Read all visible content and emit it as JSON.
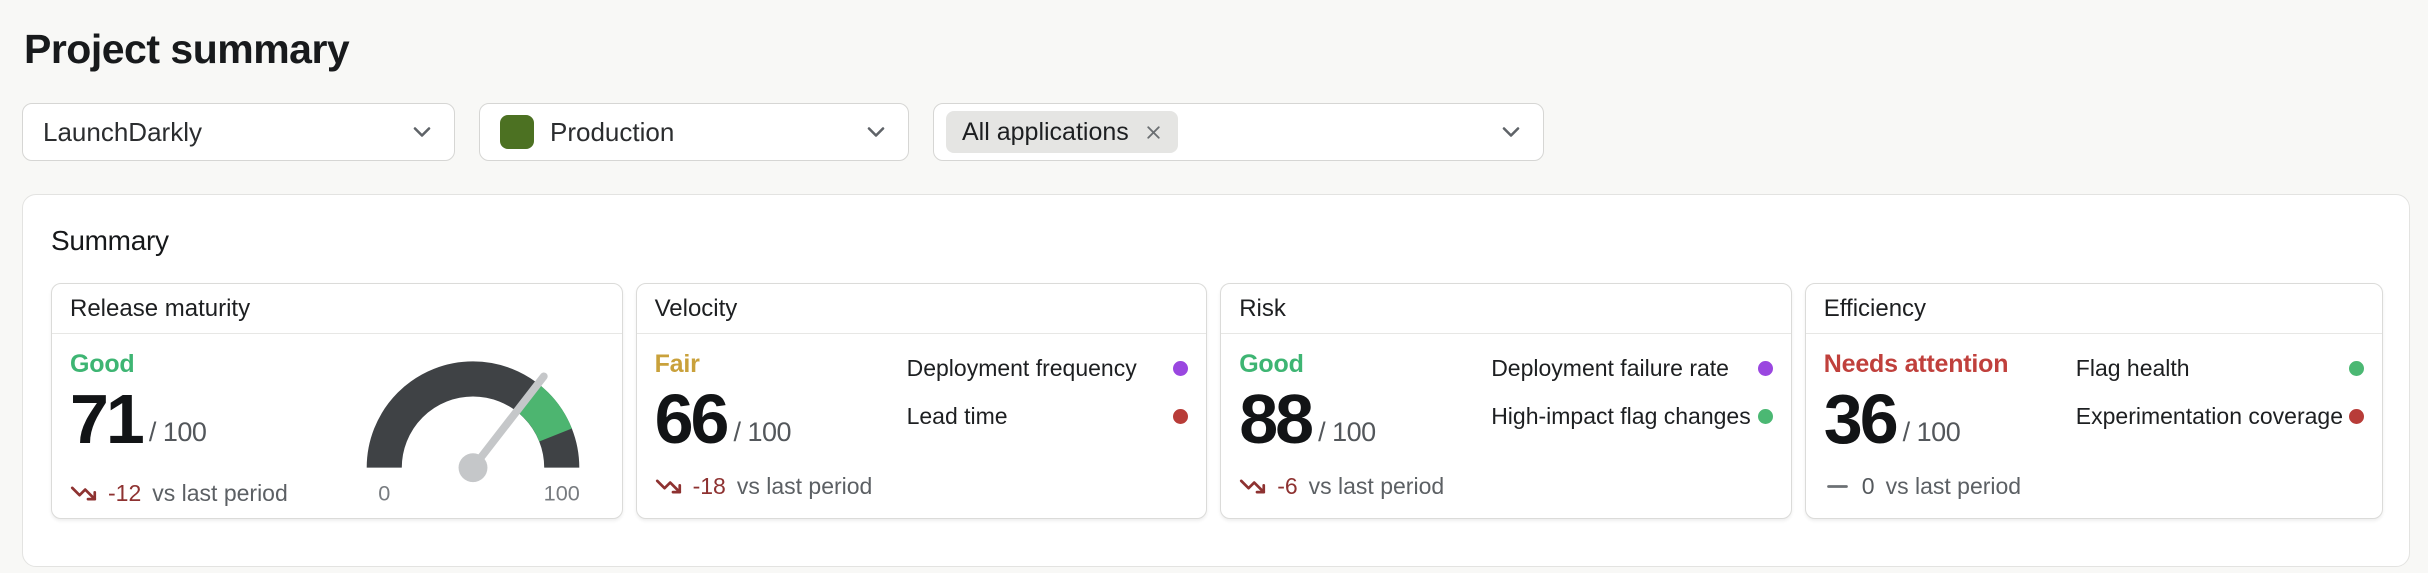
{
  "page": {
    "title": "Project summary"
  },
  "filters": {
    "project": {
      "value": "LaunchDarkly"
    },
    "environment": {
      "value": "Production",
      "swatch_color": "#4c7122"
    },
    "applications": {
      "selected_chip": "All applications"
    }
  },
  "summary": {
    "title": "Summary",
    "cards": [
      {
        "title": "Release maturity",
        "status": "Good",
        "status_color": "#3eb573",
        "score": "71",
        "score_denominator": "/ 100",
        "trend": {
          "value": "-12",
          "label": "vs last period",
          "direction": "down",
          "value_color": "#8e3231",
          "icon_color": "#8e3231"
        },
        "gauge": {
          "type": "gauge",
          "value": 71,
          "min": 0,
          "max": 100,
          "min_label": "0",
          "max_label": "100",
          "band_start": 71,
          "band_end": 88,
          "band_color": "#4db570",
          "track_color": "#3f4245",
          "needle_color": "#c5c7c9"
        }
      },
      {
        "title": "Velocity",
        "status": "Fair",
        "status_color": "#c9a13b",
        "score": "66",
        "score_denominator": "/ 100",
        "trend": {
          "value": "-18",
          "label": "vs last period",
          "direction": "down",
          "value_color": "#8e3231",
          "icon_color": "#8e3231"
        },
        "metrics": [
          {
            "label": "Deployment frequency",
            "dot_color": "#9a47e0"
          },
          {
            "label": "Lead time",
            "dot_color": "#b83c38"
          }
        ]
      },
      {
        "title": "Risk",
        "status": "Good",
        "status_color": "#3eb573",
        "score": "88",
        "score_denominator": "/ 100",
        "trend": {
          "value": "-6",
          "label": "vs last period",
          "direction": "down",
          "value_color": "#8e3231",
          "icon_color": "#8e3231"
        },
        "metrics": [
          {
            "label": "Deployment failure rate",
            "dot_color": "#9a47e0"
          },
          {
            "label": "High-impact flag changes",
            "dot_color": "#4bb873"
          }
        ]
      },
      {
        "title": "Efficiency",
        "status": "Needs attention",
        "status_color": "#c0403c",
        "score": "36",
        "score_denominator": "/ 100",
        "trend": {
          "value": "0",
          "label": "vs last period",
          "direction": "flat",
          "value_color": "#55595d",
          "icon_color": "#6c7074"
        },
        "metrics": [
          {
            "label": "Flag health",
            "dot_color": "#4bb873"
          },
          {
            "label": "Experimentation coverage",
            "dot_color": "#b83c38"
          }
        ]
      }
    ]
  }
}
